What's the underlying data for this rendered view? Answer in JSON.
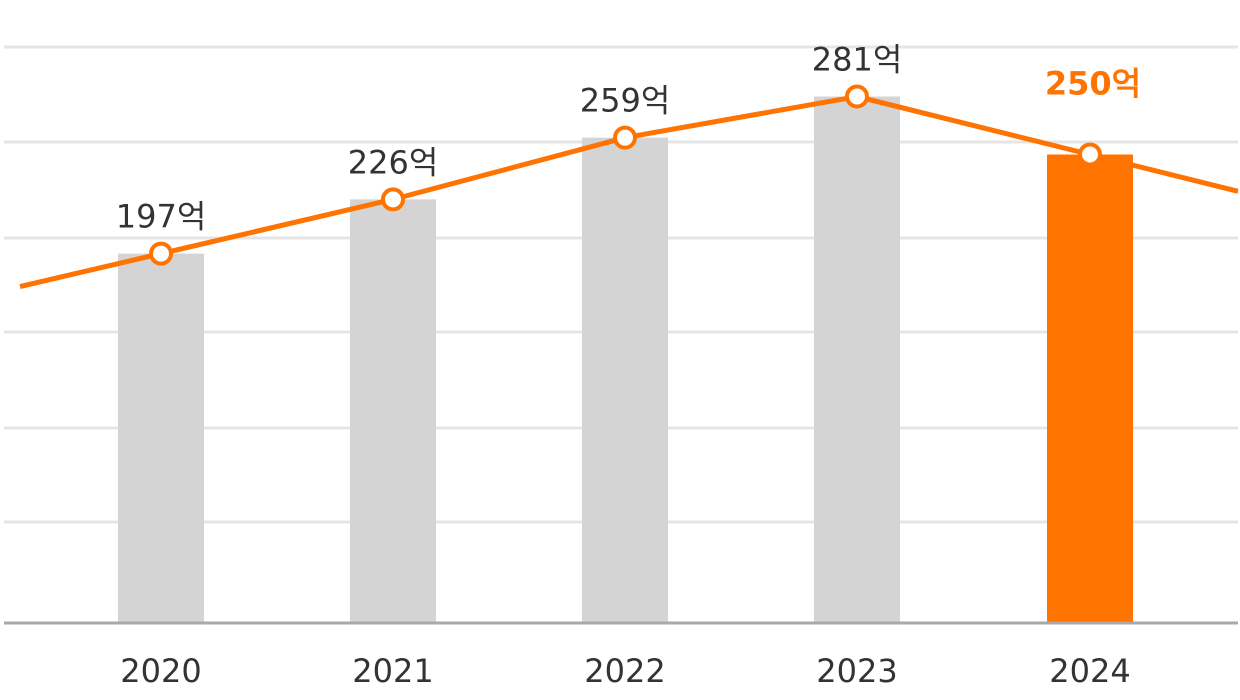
{
  "chart_data": {
    "type": "bar",
    "title": "",
    "xlabel": "",
    "ylabel": "",
    "categories": [
      "2020",
      "2021",
      "2022",
      "2023",
      "2024"
    ],
    "ylim": [
      0,
      300
    ],
    "grid": true,
    "series": [
      {
        "kind": "bar",
        "values": [
          197,
          226,
          259,
          281,
          250
        ],
        "highlight_index": 4
      },
      {
        "kind": "line",
        "values": [
          197,
          226,
          259,
          281,
          250
        ]
      }
    ],
    "data_labels": [
      "197억",
      "226억",
      "259억",
      "281억",
      "250억"
    ],
    "colors": {
      "bar": "#d4d4d4",
      "bar_highlight": "#ff7300",
      "line": "#ff7300",
      "grid": "#e5e5e5",
      "axis": "#a8a8a8",
      "text": "#333333"
    }
  }
}
